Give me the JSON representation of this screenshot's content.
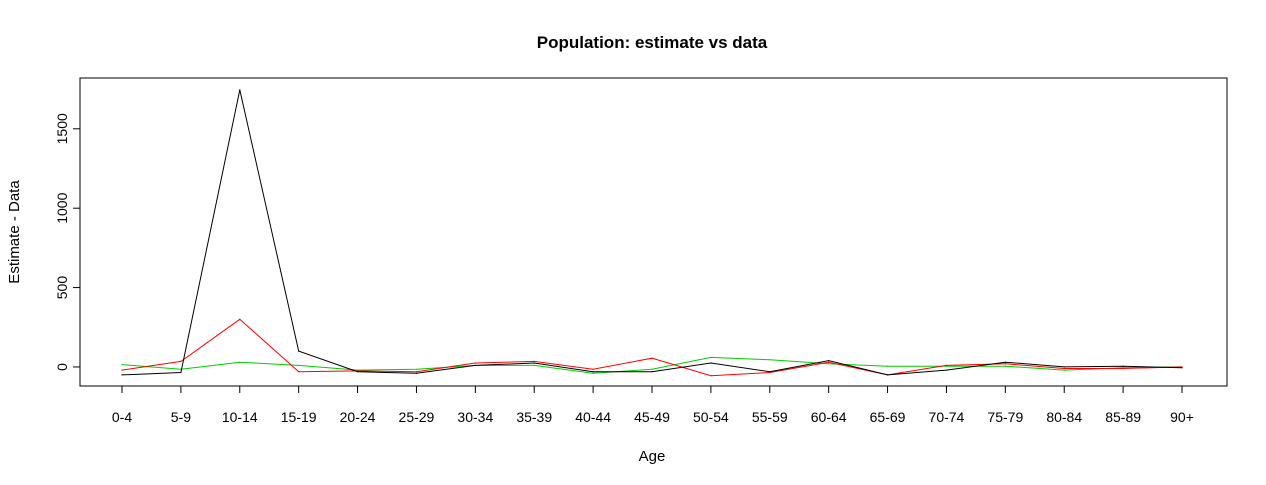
{
  "chart_data": {
    "type": "line",
    "title": "Population: estimate vs data",
    "xlabel": "Age",
    "ylabel": "Estimate - Data",
    "categories": [
      "0-4",
      "5-9",
      "10-14",
      "15-19",
      "20-24",
      "25-29",
      "30-34",
      "35-39",
      "40-44",
      "45-49",
      "50-54",
      "55-59",
      "60-64",
      "65-69",
      "70-74",
      "75-79",
      "80-84",
      "85-89",
      "90+"
    ],
    "y_ticks": [
      0,
      500,
      1000,
      1500
    ],
    "ylim": [
      -120,
      1820
    ],
    "grid": false,
    "legend": "none",
    "series": [
      {
        "color": "#000000",
        "values": [
          -50,
          -35,
          1745,
          100,
          -30,
          -40,
          10,
          25,
          -30,
          -30,
          25,
          -30,
          40,
          -50,
          -20,
          30,
          0,
          5,
          -5
        ]
      },
      {
        "color": "#ff0000",
        "values": [
          -20,
          35,
          300,
          -30,
          -25,
          -30,
          25,
          35,
          -15,
          55,
          -55,
          -35,
          30,
          -50,
          10,
          20,
          -10,
          -10,
          0
        ]
      },
      {
        "color": "#00cd00",
        "values": [
          15,
          -15,
          30,
          10,
          -20,
          -15,
          10,
          10,
          -40,
          -15,
          60,
          45,
          20,
          5,
          5,
          5,
          -20,
          -5,
          0
        ]
      }
    ]
  }
}
